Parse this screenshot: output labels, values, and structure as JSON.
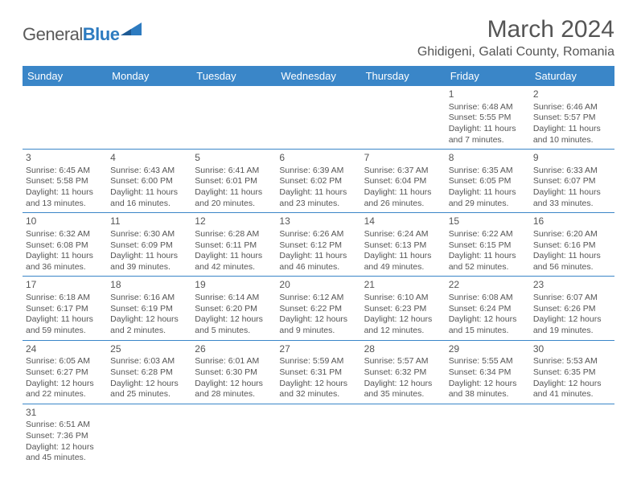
{
  "logo": {
    "text1": "General",
    "text2": "Blue"
  },
  "title": "March 2024",
  "location": "Ghidigeni, Galati County, Romania",
  "colors": {
    "header_bg": "#3a86c8",
    "header_fg": "#ffffff",
    "text": "#555555",
    "rule": "#3a86c8",
    "logo_blue": "#2d7bc0"
  },
  "day_headers": [
    "Sunday",
    "Monday",
    "Tuesday",
    "Wednesday",
    "Thursday",
    "Friday",
    "Saturday"
  ],
  "weeks": [
    [
      null,
      null,
      null,
      null,
      null,
      {
        "n": "1",
        "sr": "Sunrise: 6:48 AM",
        "ss": "Sunset: 5:55 PM",
        "d1": "Daylight: 11 hours",
        "d2": "and 7 minutes."
      },
      {
        "n": "2",
        "sr": "Sunrise: 6:46 AM",
        "ss": "Sunset: 5:57 PM",
        "d1": "Daylight: 11 hours",
        "d2": "and 10 minutes."
      }
    ],
    [
      {
        "n": "3",
        "sr": "Sunrise: 6:45 AM",
        "ss": "Sunset: 5:58 PM",
        "d1": "Daylight: 11 hours",
        "d2": "and 13 minutes."
      },
      {
        "n": "4",
        "sr": "Sunrise: 6:43 AM",
        "ss": "Sunset: 6:00 PM",
        "d1": "Daylight: 11 hours",
        "d2": "and 16 minutes."
      },
      {
        "n": "5",
        "sr": "Sunrise: 6:41 AM",
        "ss": "Sunset: 6:01 PM",
        "d1": "Daylight: 11 hours",
        "d2": "and 20 minutes."
      },
      {
        "n": "6",
        "sr": "Sunrise: 6:39 AM",
        "ss": "Sunset: 6:02 PM",
        "d1": "Daylight: 11 hours",
        "d2": "and 23 minutes."
      },
      {
        "n": "7",
        "sr": "Sunrise: 6:37 AM",
        "ss": "Sunset: 6:04 PM",
        "d1": "Daylight: 11 hours",
        "d2": "and 26 minutes."
      },
      {
        "n": "8",
        "sr": "Sunrise: 6:35 AM",
        "ss": "Sunset: 6:05 PM",
        "d1": "Daylight: 11 hours",
        "d2": "and 29 minutes."
      },
      {
        "n": "9",
        "sr": "Sunrise: 6:33 AM",
        "ss": "Sunset: 6:07 PM",
        "d1": "Daylight: 11 hours",
        "d2": "and 33 minutes."
      }
    ],
    [
      {
        "n": "10",
        "sr": "Sunrise: 6:32 AM",
        "ss": "Sunset: 6:08 PM",
        "d1": "Daylight: 11 hours",
        "d2": "and 36 minutes."
      },
      {
        "n": "11",
        "sr": "Sunrise: 6:30 AM",
        "ss": "Sunset: 6:09 PM",
        "d1": "Daylight: 11 hours",
        "d2": "and 39 minutes."
      },
      {
        "n": "12",
        "sr": "Sunrise: 6:28 AM",
        "ss": "Sunset: 6:11 PM",
        "d1": "Daylight: 11 hours",
        "d2": "and 42 minutes."
      },
      {
        "n": "13",
        "sr": "Sunrise: 6:26 AM",
        "ss": "Sunset: 6:12 PM",
        "d1": "Daylight: 11 hours",
        "d2": "and 46 minutes."
      },
      {
        "n": "14",
        "sr": "Sunrise: 6:24 AM",
        "ss": "Sunset: 6:13 PM",
        "d1": "Daylight: 11 hours",
        "d2": "and 49 minutes."
      },
      {
        "n": "15",
        "sr": "Sunrise: 6:22 AM",
        "ss": "Sunset: 6:15 PM",
        "d1": "Daylight: 11 hours",
        "d2": "and 52 minutes."
      },
      {
        "n": "16",
        "sr": "Sunrise: 6:20 AM",
        "ss": "Sunset: 6:16 PM",
        "d1": "Daylight: 11 hours",
        "d2": "and 56 minutes."
      }
    ],
    [
      {
        "n": "17",
        "sr": "Sunrise: 6:18 AM",
        "ss": "Sunset: 6:17 PM",
        "d1": "Daylight: 11 hours",
        "d2": "and 59 minutes."
      },
      {
        "n": "18",
        "sr": "Sunrise: 6:16 AM",
        "ss": "Sunset: 6:19 PM",
        "d1": "Daylight: 12 hours",
        "d2": "and 2 minutes."
      },
      {
        "n": "19",
        "sr": "Sunrise: 6:14 AM",
        "ss": "Sunset: 6:20 PM",
        "d1": "Daylight: 12 hours",
        "d2": "and 5 minutes."
      },
      {
        "n": "20",
        "sr": "Sunrise: 6:12 AM",
        "ss": "Sunset: 6:22 PM",
        "d1": "Daylight: 12 hours",
        "d2": "and 9 minutes."
      },
      {
        "n": "21",
        "sr": "Sunrise: 6:10 AM",
        "ss": "Sunset: 6:23 PM",
        "d1": "Daylight: 12 hours",
        "d2": "and 12 minutes."
      },
      {
        "n": "22",
        "sr": "Sunrise: 6:08 AM",
        "ss": "Sunset: 6:24 PM",
        "d1": "Daylight: 12 hours",
        "d2": "and 15 minutes."
      },
      {
        "n": "23",
        "sr": "Sunrise: 6:07 AM",
        "ss": "Sunset: 6:26 PM",
        "d1": "Daylight: 12 hours",
        "d2": "and 19 minutes."
      }
    ],
    [
      {
        "n": "24",
        "sr": "Sunrise: 6:05 AM",
        "ss": "Sunset: 6:27 PM",
        "d1": "Daylight: 12 hours",
        "d2": "and 22 minutes."
      },
      {
        "n": "25",
        "sr": "Sunrise: 6:03 AM",
        "ss": "Sunset: 6:28 PM",
        "d1": "Daylight: 12 hours",
        "d2": "and 25 minutes."
      },
      {
        "n": "26",
        "sr": "Sunrise: 6:01 AM",
        "ss": "Sunset: 6:30 PM",
        "d1": "Daylight: 12 hours",
        "d2": "and 28 minutes."
      },
      {
        "n": "27",
        "sr": "Sunrise: 5:59 AM",
        "ss": "Sunset: 6:31 PM",
        "d1": "Daylight: 12 hours",
        "d2": "and 32 minutes."
      },
      {
        "n": "28",
        "sr": "Sunrise: 5:57 AM",
        "ss": "Sunset: 6:32 PM",
        "d1": "Daylight: 12 hours",
        "d2": "and 35 minutes."
      },
      {
        "n": "29",
        "sr": "Sunrise: 5:55 AM",
        "ss": "Sunset: 6:34 PM",
        "d1": "Daylight: 12 hours",
        "d2": "and 38 minutes."
      },
      {
        "n": "30",
        "sr": "Sunrise: 5:53 AM",
        "ss": "Sunset: 6:35 PM",
        "d1": "Daylight: 12 hours",
        "d2": "and 41 minutes."
      }
    ],
    [
      {
        "n": "31",
        "sr": "Sunrise: 6:51 AM",
        "ss": "Sunset: 7:36 PM",
        "d1": "Daylight: 12 hours",
        "d2": "and 45 minutes."
      },
      null,
      null,
      null,
      null,
      null,
      null
    ]
  ]
}
